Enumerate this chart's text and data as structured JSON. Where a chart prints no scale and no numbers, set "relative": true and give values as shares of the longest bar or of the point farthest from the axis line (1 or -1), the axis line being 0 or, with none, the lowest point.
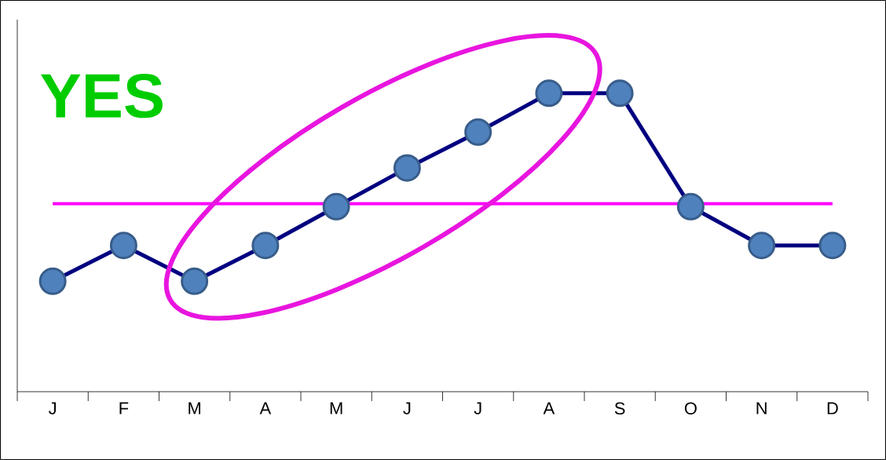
{
  "chart_data": {
    "type": "line",
    "relative": true,
    "categories": [
      "J",
      "F",
      "M",
      "A",
      "M",
      "J",
      "J",
      "A",
      "S",
      "O",
      "N",
      "D"
    ],
    "series": [
      {
        "color": "#000080",
        "values": [
          0.37,
          0.49,
          0.37,
          0.49,
          0.62,
          0.75,
          0.87,
          1,
          1,
          0.62,
          0.49,
          0.49
        ]
      }
    ],
    "marker": "circle",
    "line_style": "solid",
    "ref_lines": [
      {
        "axis": "y",
        "value": 0.63,
        "color": "#ff00ff"
      }
    ],
    "annotations": [
      "YES"
    ]
  }
}
